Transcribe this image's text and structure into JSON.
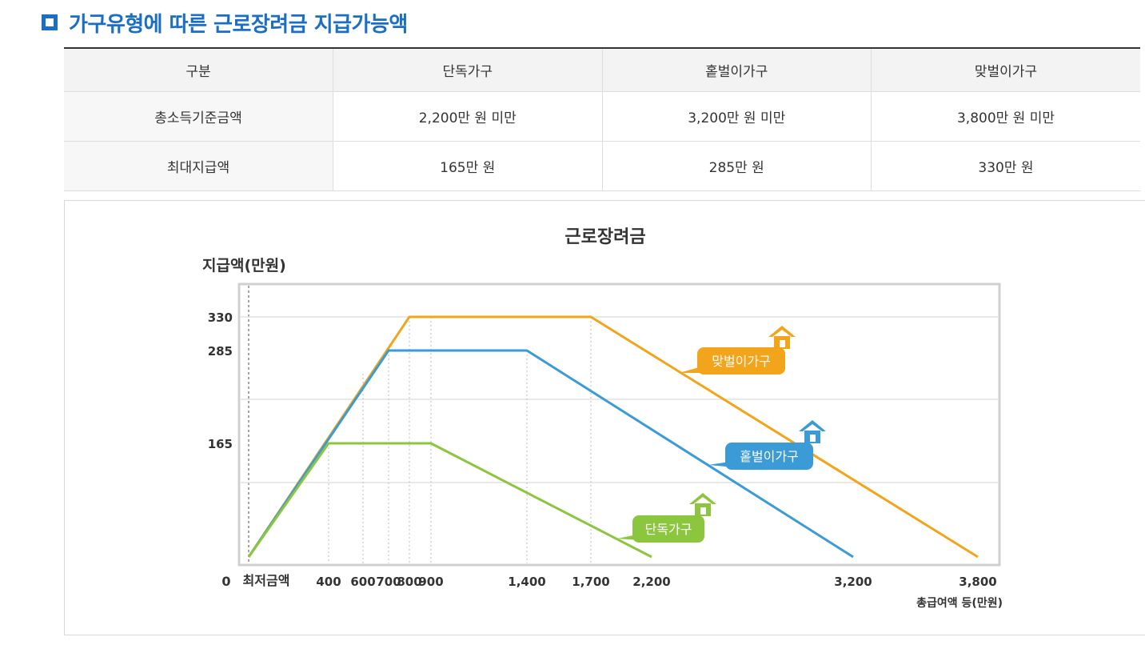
{
  "heading": {
    "title": "가구유형에 따른 근로장려금 지급가능액"
  },
  "table": {
    "headers": [
      "구분",
      "단독가구",
      "홑벌이가구",
      "맞벌이가구"
    ],
    "rows": [
      {
        "label": "총소득기준금액",
        "values": [
          "2,200만 원 미만",
          "3,200만 원 미만",
          "3,800만 원 미만"
        ]
      },
      {
        "label": "최대지급액",
        "values": [
          "165만 원",
          "285만 원",
          "330만 원"
        ]
      }
    ]
  },
  "chart_data": {
    "type": "line",
    "title": "근로장려금",
    "ylabel": "지급액(만원)",
    "xlabel": "총급여액 등(만원)",
    "origin_label": "0",
    "min_label": "최저금액",
    "xlim": [
      0,
      3800
    ],
    "ylim": [
      0,
      330
    ],
    "x_ticks": [
      {
        "v": 400,
        "label": "400"
      },
      {
        "v": 600,
        "label": "600"
      },
      {
        "v": 700,
        "label": "700"
      },
      {
        "v": 800,
        "label": "800"
      },
      {
        "v": 900,
        "label": "900"
      },
      {
        "v": 1400,
        "label": "1,400"
      },
      {
        "v": 1700,
        "label": "1,700"
      },
      {
        "v": 2200,
        "label": "2,200"
      },
      {
        "v": 3200,
        "label": "3,200"
      },
      {
        "v": 3800,
        "label": "3,800"
      }
    ],
    "y_ticks": [
      {
        "v": 165,
        "label": "165"
      },
      {
        "v": 285,
        "label": "285"
      },
      {
        "v": 330,
        "label": "330"
      }
    ],
    "grid": true,
    "series": [
      {
        "name": "맞벌이가구",
        "color": "#f2a51a",
        "points": [
          [
            0,
            0
          ],
          [
            800,
            330
          ],
          [
            1700,
            330
          ],
          [
            3800,
            0
          ]
        ]
      },
      {
        "name": "홑벌이가구",
        "color": "#3b9bd6",
        "points": [
          [
            0,
            0
          ],
          [
            700,
            285
          ],
          [
            1400,
            285
          ],
          [
            3200,
            0
          ]
        ]
      },
      {
        "name": "단독가구",
        "color": "#8cc63e",
        "points": [
          [
            0,
            0
          ],
          [
            400,
            165
          ],
          [
            900,
            165
          ],
          [
            2200,
            0
          ]
        ]
      }
    ]
  }
}
